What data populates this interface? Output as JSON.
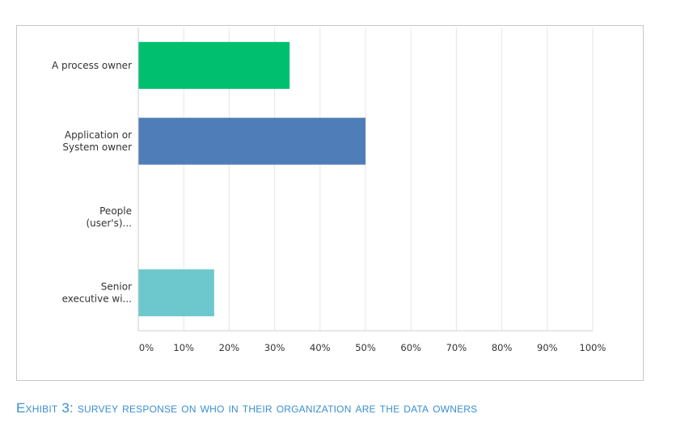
{
  "chart_data": {
    "type": "bar",
    "orientation": "horizontal",
    "categories": [
      [
        "A process owner"
      ],
      [
        "Application or",
        "System owner"
      ],
      [
        "People",
        "(user's)..."
      ],
      [
        "Senior",
        "executive wi..."
      ]
    ],
    "values": [
      33.3,
      50.0,
      0,
      16.7
    ],
    "colors": [
      "#00bf6f",
      "#4f7db8",
      "#f4a623",
      "#6cc8cc"
    ],
    "xlim": [
      0,
      100
    ],
    "xticks": [
      "0%",
      "10%",
      "20%",
      "30%",
      "40%",
      "50%",
      "60%",
      "70%",
      "80%",
      "90%",
      "100%"
    ],
    "grid": true
  },
  "caption": "Exhibit 3: survey response on who in their organization are the data owners"
}
